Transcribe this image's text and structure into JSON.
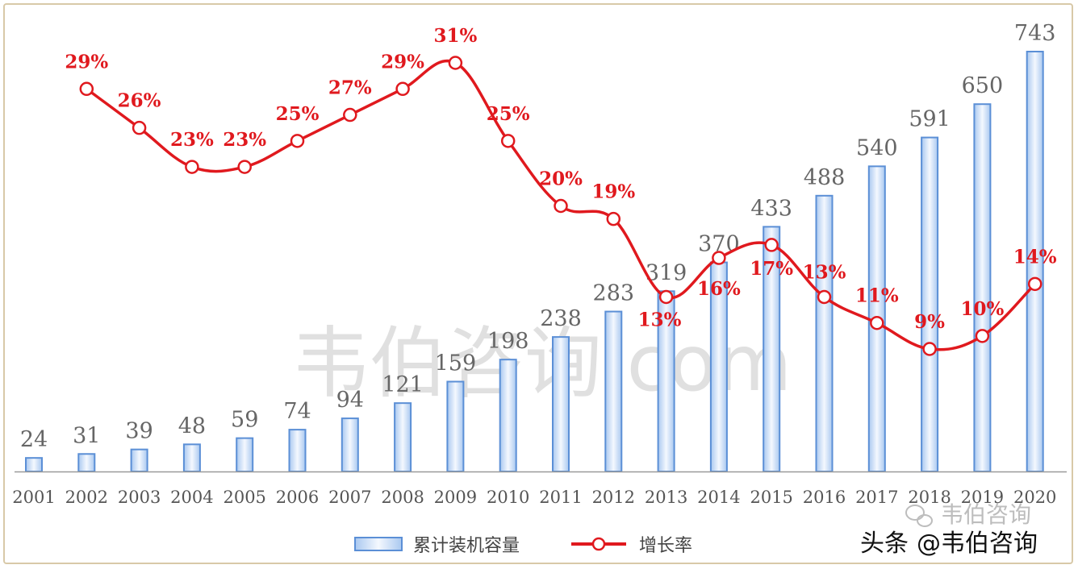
{
  "chart_data": {
    "type": "bar",
    "categories": [
      "2001",
      "2002",
      "2003",
      "2004",
      "2005",
      "2006",
      "2007",
      "2008",
      "2009",
      "2010",
      "2011",
      "2012",
      "2013",
      "2014",
      "2015",
      "2016",
      "2017",
      "2018",
      "2019",
      "2020"
    ],
    "series": [
      {
        "name": "累计装机容量",
        "type": "bar",
        "values": [
          24,
          31,
          39,
          48,
          59,
          74,
          94,
          121,
          159,
          198,
          238,
          283,
          319,
          370,
          433,
          488,
          540,
          591,
          650,
          743
        ],
        "labels": [
          "24",
          "31",
          "39",
          "48",
          "59",
          "74",
          "94",
          "121",
          "159",
          "198",
          "238",
          "283",
          "319",
          "370",
          "433",
          "488",
          "540",
          "591",
          "650",
          "743"
        ],
        "color": "#5b8fd6"
      },
      {
        "name": "增长率",
        "type": "line",
        "values": [
          null,
          29,
          26,
          23,
          23,
          25,
          27,
          29,
          31,
          25,
          20,
          19,
          13,
          16,
          17,
          13,
          11,
          9,
          10,
          14
        ],
        "labels": [
          "",
          "29%",
          "26%",
          "23%",
          "23%",
          "25%",
          "27%",
          "29%",
          "31%",
          "25%",
          "20%",
          "19%",
          "13%",
          "16%",
          "17%",
          "13%",
          "11%",
          "9%",
          "10%",
          "14%"
        ],
        "color": "#e0191e"
      }
    ],
    "ylim": [
      0,
      760
    ],
    "y2lim": [
      0,
      35
    ],
    "legend_position": "bottom",
    "grid": false
  },
  "watermark": "韦伯咨询.com",
  "stamp": {
    "prefix": "头条",
    "handle": "@韦伯咨询",
    "faint_text": "韦伯咨询"
  }
}
